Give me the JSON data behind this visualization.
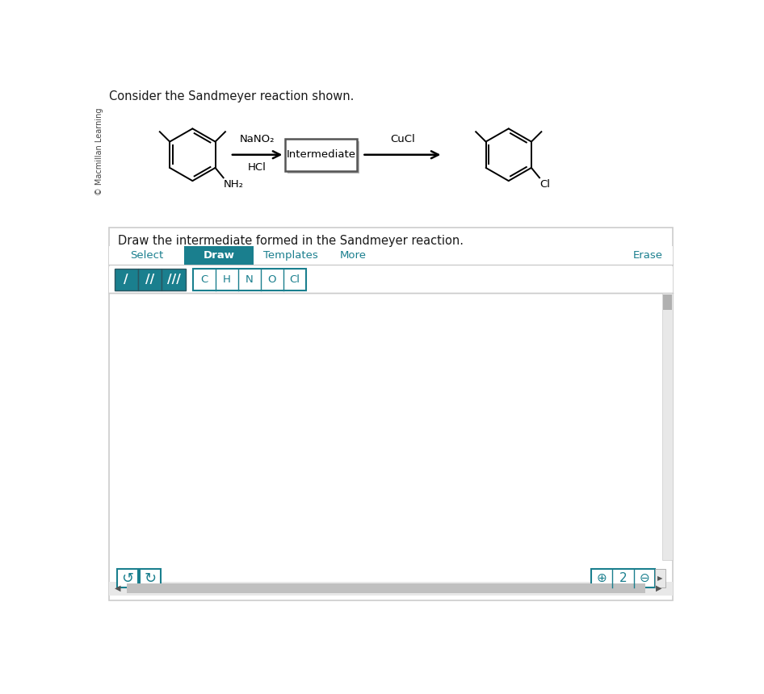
{
  "title_text": "Consider the Sandmeyer reaction shown.",
  "copyright_text": "© Macmillan Learning",
  "reaction_label1": "NaNO₂",
  "reaction_label2": "HCl",
  "intermediate_label": "Intermediate",
  "cuci_label": "CuCl",
  "nh2_label": "NH₂",
  "cl_label": "Cl",
  "question_text": "Draw the intermediate formed in the Sandmeyer reaction.",
  "tab_select": "Select",
  "tab_draw": "Draw",
  "tab_templates": "Templates",
  "tab_more": "More",
  "tab_erase": "Erase",
  "bond_buttons": [
    "/",
    "//",
    "///"
  ],
  "atom_buttons": [
    "C",
    "H",
    "N",
    "O",
    "Cl"
  ],
  "teal_color": "#1a7f8e",
  "bg_white": "#ffffff",
  "border_gray": "#cccccc",
  "border_dark": "#999999",
  "text_dark": "#1a1a1a",
  "scrollbar_gray": "#b0b0b0",
  "light_gray": "#e8e8e8",
  "medium_gray": "#c0c0c0"
}
